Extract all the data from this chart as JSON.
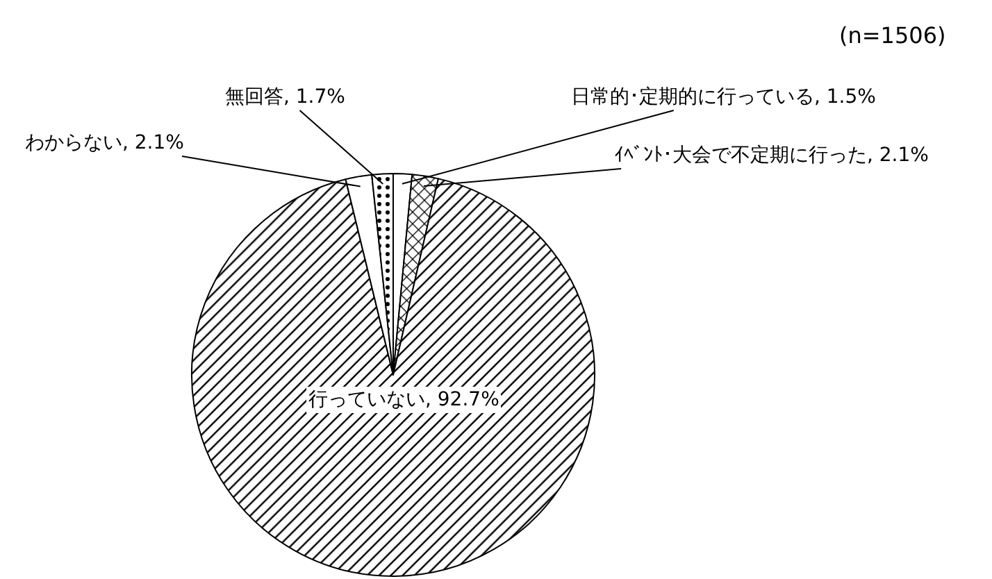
{
  "chart_data": {
    "type": "pie",
    "categories": [
      "日常的･定期的に行っている",
      "ｲﾍﾞﾝﾄ･大会で不定期に行った",
      "行っていない",
      "わからない",
      "無回答"
    ],
    "values": [
      1.5,
      2.1,
      92.7,
      2.1,
      1.7
    ],
    "colors": [
      "#000000",
      "#000000",
      "#000000",
      "#ffffff",
      "#000000"
    ],
    "value_labels": [
      "1.5%",
      "2.1%",
      "92.7%",
      "2.1%",
      "1.7%"
    ],
    "annotations": [
      "(n=1506)"
    ],
    "legend": false
  }
}
